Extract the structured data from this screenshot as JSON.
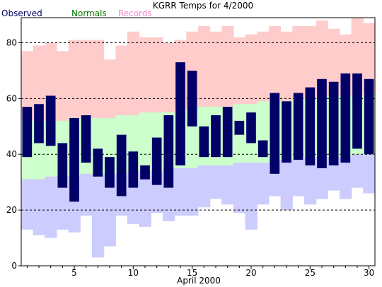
{
  "chart_data": {
    "type": "bar",
    "title": "KGRR Temps for 4/2000",
    "xlabel": "April 2000",
    "ylabel": "",
    "ylim": [
      0,
      89
    ],
    "xlim": [
      0.5,
      30.5
    ],
    "grid": "horizontal dashed at y ticks",
    "legend_placement": "top-left",
    "x_ticks": [
      5,
      10,
      15,
      20,
      25,
      30
    ],
    "y_ticks": [
      0,
      20,
      40,
      60,
      80
    ],
    "days": [
      1,
      2,
      3,
      4,
      5,
      6,
      7,
      8,
      9,
      10,
      11,
      12,
      13,
      14,
      15,
      16,
      17,
      18,
      19,
      20,
      21,
      22,
      23,
      24,
      25,
      26,
      27,
      28,
      29,
      30
    ],
    "series": [
      {
        "name": "Records",
        "color": "#ffcccc",
        "legend_color": "#ee88cc",
        "high": [
          77,
          79,
          80,
          77,
          81,
          81,
          81,
          74,
          79,
          84,
          82,
          82,
          80,
          81,
          84,
          86,
          84,
          86,
          82,
          83,
          84,
          86,
          84,
          86,
          86,
          88,
          85,
          83,
          89,
          87
        ],
        "low": [
          13,
          11,
          10,
          13,
          12,
          18,
          3,
          7,
          18,
          15,
          14,
          19,
          16,
          18,
          18,
          21,
          24,
          22,
          19,
          13,
          22,
          25,
          20,
          25,
          22,
          24,
          27,
          24,
          28,
          26
        ]
      },
      {
        "name": "Normals",
        "color": "#ccffcc",
        "legend_color": "#007700",
        "high": [
          52,
          52,
          52,
          52,
          53,
          53,
          53,
          53,
          54,
          54,
          55,
          55,
          55,
          56,
          56,
          57,
          57,
          57,
          58,
          58,
          59,
          59,
          59,
          60,
          60,
          60,
          61,
          61,
          61,
          62
        ],
        "low": [
          31,
          31,
          32,
          32,
          32,
          33,
          33,
          33,
          33,
          34,
          34,
          34,
          35,
          35,
          35,
          36,
          36,
          36,
          37,
          37,
          37,
          38,
          38,
          38,
          39,
          39,
          39,
          39,
          40,
          40
        ]
      },
      {
        "name": "Observed",
        "color": "#000066",
        "legend_color": "#000066",
        "high": [
          57,
          58,
          61,
          44,
          53,
          54,
          42,
          39,
          47,
          41,
          36,
          46,
          54,
          73,
          70,
          50,
          54,
          57,
          52,
          55,
          45,
          62,
          59,
          62,
          64,
          67,
          66,
          69,
          69,
          67
        ],
        "low": [
          39,
          44,
          43,
          28,
          23,
          37,
          32,
          28,
          25,
          28,
          31,
          29,
          28,
          36,
          50,
          39,
          39,
          39,
          47,
          44,
          39,
          33,
          37,
          38,
          36,
          35,
          36,
          37,
          42,
          40
        ]
      }
    ]
  }
}
